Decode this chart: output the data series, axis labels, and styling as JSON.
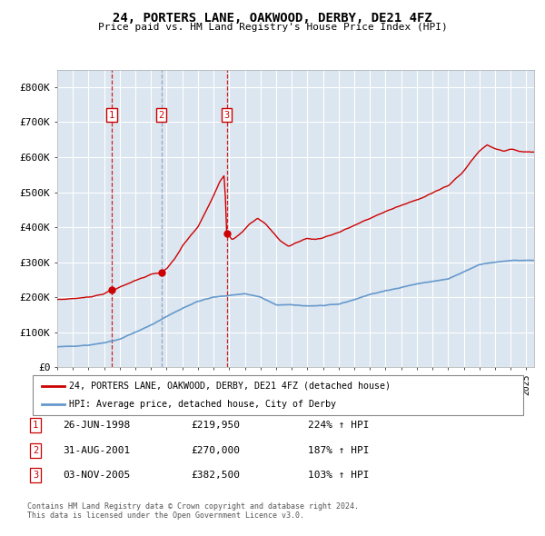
{
  "title": "24, PORTERS LANE, OAKWOOD, DERBY, DE21 4FZ",
  "subtitle": "Price paid vs. HM Land Registry's House Price Index (HPI)",
  "legend_line1": "24, PORTERS LANE, OAKWOOD, DERBY, DE21 4FZ (detached house)",
  "legend_line2": "HPI: Average price, detached house, City of Derby",
  "footnote1": "Contains HM Land Registry data © Crown copyright and database right 2024.",
  "footnote2": "This data is licensed under the Open Government Licence v3.0.",
  "red_color": "#cc0000",
  "blue_color": "#6699cc",
  "bg_color": "#dce6f0",
  "grid_color": "#ffffff",
  "purchases": [
    {
      "date_num": 1998.49,
      "price": 219950,
      "label": "1"
    },
    {
      "date_num": 2001.66,
      "price": 270000,
      "label": "2"
    },
    {
      "date_num": 2005.84,
      "price": 382500,
      "label": "3"
    }
  ],
  "table_data": [
    {
      "num": "1",
      "date": "26-JUN-1998",
      "price": "£219,950",
      "hpi": "224% ↑ HPI"
    },
    {
      "num": "2",
      "date": "31-AUG-2001",
      "price": "£270,000",
      "hpi": "187% ↑ HPI"
    },
    {
      "num": "3",
      "date": "03-NOV-2005",
      "price": "£382,500",
      "hpi": "103% ↑ HPI"
    }
  ],
  "ylim": [
    0,
    850000
  ],
  "xlim": [
    1995.0,
    2025.5
  ],
  "yticks": [
    0,
    100000,
    200000,
    300000,
    400000,
    500000,
    600000,
    700000,
    800000
  ],
  "ytick_labels": [
    "£0",
    "£100K",
    "£200K",
    "£300K",
    "£400K",
    "£500K",
    "£600K",
    "£700K",
    "£800K"
  ],
  "hpi_anchors_x": [
    1995.0,
    1996.0,
    1997.0,
    1998.0,
    1999.0,
    2000.0,
    2001.0,
    2002.0,
    2003.0,
    2004.0,
    2005.0,
    2006.0,
    2007.0,
    2008.0,
    2009.0,
    2010.0,
    2011.0,
    2012.0,
    2013.0,
    2014.0,
    2015.0,
    2016.0,
    2017.0,
    2018.0,
    2019.0,
    2020.0,
    2021.0,
    2022.0,
    2023.0,
    2024.0,
    2025.0
  ],
  "hpi_anchors_y": [
    58000,
    60000,
    63000,
    70000,
    80000,
    100000,
    120000,
    145000,
    168000,
    188000,
    200000,
    205000,
    210000,
    200000,
    178000,
    178000,
    175000,
    176000,
    180000,
    193000,
    208000,
    218000,
    228000,
    238000,
    245000,
    252000,
    272000,
    293000,
    300000,
    305000,
    305000
  ],
  "red_anchors_x": [
    1995.0,
    1996.0,
    1997.0,
    1997.5,
    1998.0,
    1998.49,
    1999.0,
    2000.0,
    2001.0,
    2001.66,
    2002.0,
    2002.5,
    2003.0,
    2003.5,
    2004.0,
    2004.5,
    2005.0,
    2005.4,
    2005.7,
    2005.84,
    2006.2,
    2006.8,
    2007.3,
    2007.8,
    2008.3,
    2008.8,
    2009.3,
    2009.8,
    2010.5,
    2011.0,
    2011.5,
    2012.0,
    2013.0,
    2014.0,
    2015.0,
    2016.0,
    2017.0,
    2018.0,
    2019.0,
    2020.0,
    2021.0,
    2021.5,
    2022.0,
    2022.5,
    2023.0,
    2023.5,
    2024.0,
    2024.5,
    2025.0
  ],
  "red_anchors_y": [
    193000,
    196000,
    200000,
    205000,
    210000,
    219950,
    228000,
    248000,
    265000,
    270000,
    282000,
    308000,
    345000,
    375000,
    400000,
    445000,
    490000,
    530000,
    548000,
    382500,
    365000,
    385000,
    410000,
    425000,
    410000,
    385000,
    360000,
    345000,
    360000,
    368000,
    365000,
    370000,
    385000,
    405000,
    425000,
    445000,
    462000,
    478000,
    498000,
    518000,
    560000,
    590000,
    618000,
    635000,
    625000,
    618000,
    622000,
    618000,
    615000
  ]
}
